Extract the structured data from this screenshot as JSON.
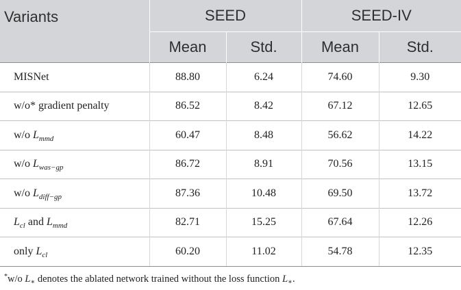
{
  "table": {
    "header": {
      "variants": "Variants",
      "groups": [
        "SEED",
        "SEED-IV"
      ],
      "sub": [
        "Mean",
        "Std.",
        "Mean",
        "Std."
      ]
    },
    "rows": [
      {
        "pre": "MISNet",
        "sym": "",
        "sub": "",
        "post": "",
        "sym2": "",
        "sub2": "",
        "vals": [
          "88.80",
          "6.24",
          "74.60",
          "9.30"
        ]
      },
      {
        "pre": "w/o* gradient penalty",
        "sym": "",
        "sub": "",
        "post": "",
        "sym2": "",
        "sub2": "",
        "vals": [
          "86.52",
          "8.42",
          "67.12",
          "12.65"
        ]
      },
      {
        "pre": "w/o ",
        "sym": "L",
        "sub": "mmd",
        "post": "",
        "sym2": "",
        "sub2": "",
        "vals": [
          "60.47",
          "8.48",
          "56.62",
          "14.22"
        ]
      },
      {
        "pre": "w/o ",
        "sym": "L",
        "sub": "was−gp",
        "post": "",
        "sym2": "",
        "sub2": "",
        "vals": [
          "86.72",
          "8.91",
          "70.56",
          "13.15"
        ]
      },
      {
        "pre": "w/o ",
        "sym": "L",
        "sub": "diff−gp",
        "post": "",
        "sym2": "",
        "sub2": "",
        "vals": [
          "87.36",
          "10.48",
          "69.50",
          "13.72"
        ]
      },
      {
        "pre": "",
        "sym": "L",
        "sub": "cl",
        "post": " and ",
        "sym2": "L",
        "sub2": "mmd",
        "vals": [
          "82.71",
          "15.25",
          "67.64",
          "12.26"
        ]
      },
      {
        "pre": "only ",
        "sym": "L",
        "sub": "cl",
        "post": "",
        "sym2": "",
        "sub2": "",
        "vals": [
          "60.20",
          "11.02",
          "54.78",
          "12.35"
        ]
      }
    ]
  },
  "footnote": {
    "mark": "*",
    "a": "w/o ",
    "sym": "L",
    "sub": "∗",
    "b": " denotes the ablated network trained without the loss function ",
    "sym2": "L",
    "sub2": "∗",
    "c": "."
  }
}
